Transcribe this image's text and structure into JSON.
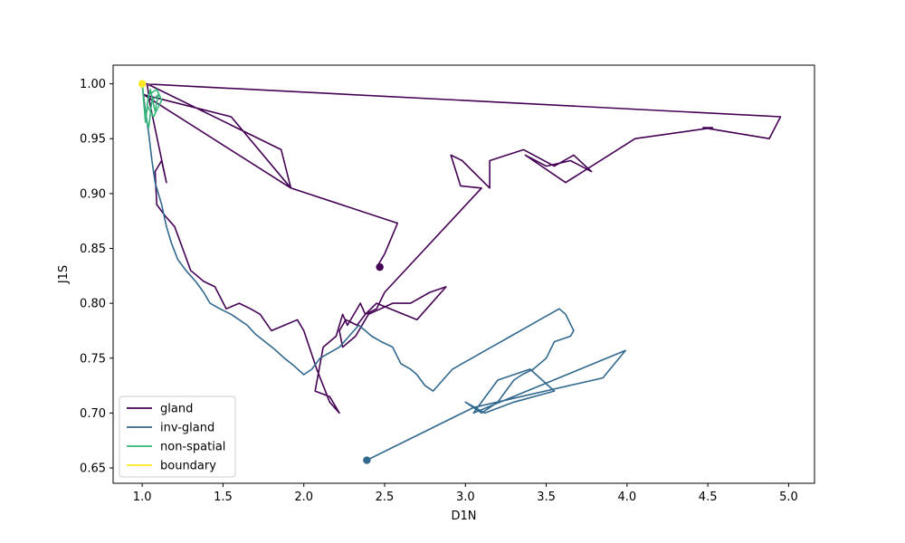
{
  "chart_data": {
    "type": "line",
    "title": "",
    "xlabel": "D1N",
    "ylabel": "J1S",
    "xlim": [
      0.82,
      5.16
    ],
    "ylim": [
      0.636,
      1.017
    ],
    "xticks": [
      "1.0",
      "1.5",
      "2.0",
      "2.5",
      "3.0",
      "3.5",
      "4.0",
      "4.5",
      "5.0"
    ],
    "xtick_values": [
      1.0,
      1.5,
      2.0,
      2.5,
      3.0,
      3.5,
      4.0,
      4.5,
      5.0
    ],
    "yticks": [
      "0.65",
      "0.70",
      "0.75",
      "0.80",
      "0.85",
      "0.90",
      "0.95",
      "1.00"
    ],
    "ytick_values": [
      0.65,
      0.7,
      0.75,
      0.8,
      0.85,
      0.9,
      0.95,
      1.0
    ],
    "grid": false,
    "legend_position": "lower-left",
    "series": [
      {
        "name": "gland",
        "color": "#440154",
        "end_marker": [
          2.47,
          0.833
        ],
        "x": [
          1.0,
          4.95,
          4.88,
          4.47,
          4.53,
          4.05,
          3.62,
          3.37,
          3.5,
          3.65,
          3.78,
          3.67,
          3.55,
          3.36,
          3.15,
          3.15,
          2.98,
          2.91,
          2.97,
          3.1,
          2.5,
          2.45,
          2.38,
          2.33,
          2.26,
          2.22,
          2.24,
          2.32,
          2.4,
          2.55,
          2.66,
          2.78,
          2.88,
          2.7,
          2.45,
          2.38,
          2.35,
          2.27,
          2.24,
          2.2,
          2.12,
          2.07,
          2.16,
          2.22,
          2.16,
          2.08,
          2.0,
          1.96,
          1.88,
          1.8,
          1.73,
          1.67,
          1.6,
          1.52,
          1.45,
          1.38,
          1.3,
          1.25,
          1.2,
          1.14,
          1.09,
          1.08,
          1.12,
          1.15,
          1.05,
          1.03,
          1.86,
          1.92,
          1.55,
          1.01,
          1.92,
          2.58,
          2.5,
          2.46,
          2.47
        ],
        "y": [
          1.0,
          0.97,
          0.95,
          0.96,
          0.96,
          0.95,
          0.91,
          0.935,
          0.925,
          0.93,
          0.92,
          0.935,
          0.925,
          0.94,
          0.93,
          0.905,
          0.93,
          0.935,
          0.907,
          0.905,
          0.81,
          0.795,
          0.79,
          0.78,
          0.785,
          0.775,
          0.76,
          0.77,
          0.79,
          0.8,
          0.8,
          0.81,
          0.815,
          0.785,
          0.8,
          0.79,
          0.8,
          0.78,
          0.79,
          0.77,
          0.76,
          0.72,
          0.715,
          0.7,
          0.71,
          0.74,
          0.775,
          0.785,
          0.78,
          0.775,
          0.79,
          0.795,
          0.8,
          0.795,
          0.815,
          0.82,
          0.83,
          0.85,
          0.87,
          0.88,
          0.89,
          0.92,
          0.93,
          0.91,
          0.98,
          1.0,
          0.94,
          0.905,
          0.97,
          0.99,
          0.905,
          0.873,
          0.845,
          0.835,
          0.833
        ]
      },
      {
        "name": "inv-gland",
        "color": "#31688e",
        "end_marker": [
          2.39,
          0.657
        ],
        "x": [
          1.0,
          1.02,
          1.04,
          1.06,
          1.08,
          1.12,
          1.15,
          1.18,
          1.22,
          1.27,
          1.33,
          1.38,
          1.42,
          1.48,
          1.55,
          1.6,
          1.65,
          1.7,
          1.76,
          1.82,
          1.88,
          1.94,
          2.0,
          2.05,
          2.1,
          2.16,
          2.22,
          2.28,
          2.34,
          2.38,
          2.42,
          2.48,
          2.55,
          2.6,
          2.66,
          2.7,
          2.75,
          2.8,
          2.86,
          2.92,
          2.98,
          3.04,
          3.1,
          3.16,
          3.22,
          3.28,
          3.34,
          3.4,
          3.46,
          3.52,
          3.58,
          3.62,
          3.67,
          3.65,
          3.55,
          3.5,
          3.42,
          3.35,
          3.3,
          3.25,
          3.2,
          3.15,
          3.1,
          3.05,
          3.0,
          3.12,
          3.3,
          3.55,
          3.4,
          3.2,
          3.05,
          3.99,
          3.85,
          3.05,
          2.39
        ],
        "y": [
          1.0,
          0.975,
          0.955,
          0.93,
          0.91,
          0.89,
          0.87,
          0.855,
          0.84,
          0.83,
          0.82,
          0.81,
          0.8,
          0.795,
          0.79,
          0.785,
          0.78,
          0.772,
          0.765,
          0.758,
          0.75,
          0.743,
          0.735,
          0.74,
          0.75,
          0.755,
          0.76,
          0.77,
          0.78,
          0.775,
          0.77,
          0.765,
          0.76,
          0.745,
          0.74,
          0.735,
          0.725,
          0.72,
          0.73,
          0.74,
          0.745,
          0.75,
          0.755,
          0.76,
          0.765,
          0.77,
          0.775,
          0.78,
          0.785,
          0.79,
          0.795,
          0.79,
          0.775,
          0.77,
          0.765,
          0.75,
          0.74,
          0.735,
          0.73,
          0.72,
          0.71,
          0.705,
          0.7,
          0.705,
          0.71,
          0.7,
          0.71,
          0.72,
          0.74,
          0.73,
          0.7,
          0.757,
          0.732,
          0.705,
          0.657
        ]
      },
      {
        "name": "non-spatial",
        "color": "#35b779",
        "end_marker": null,
        "x": [
          1.0,
          1.02,
          1.04,
          1.06,
          1.1,
          1.08,
          1.05,
          1.03,
          1.07,
          1.12,
          1.09,
          1.04,
          1.02,
          1.0
        ],
        "y": [
          1.0,
          0.97,
          0.96,
          0.985,
          0.99,
          0.975,
          0.995,
          0.98,
          0.97,
          0.985,
          0.995,
          0.99,
          0.965,
          1.0
        ]
      },
      {
        "name": "boundary",
        "color": "#fde725",
        "end_marker": [
          1.0,
          1.0
        ],
        "x": [
          1.0,
          1.0
        ],
        "y": [
          1.0,
          1.0
        ]
      }
    ]
  }
}
